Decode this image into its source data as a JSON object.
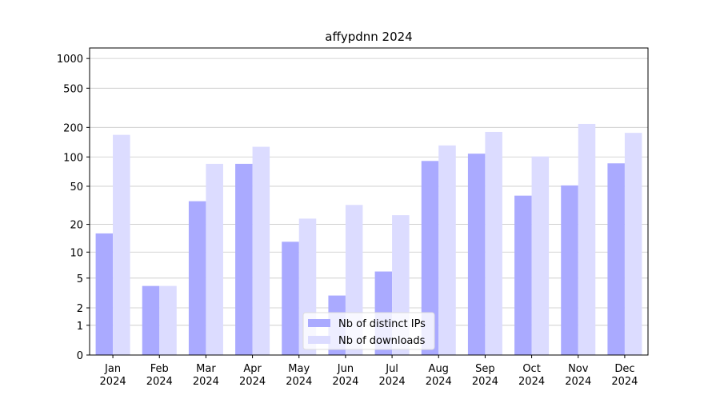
{
  "chart_data": {
    "type": "bar",
    "title": "affypdnn 2024",
    "categories": [
      "Jan 2024",
      "Feb 2024",
      "Mar 2024",
      "Apr 2024",
      "May 2024",
      "Jun 2024",
      "Jul 2024",
      "Aug 2024",
      "Sep 2024",
      "Oct 2024",
      "Nov 2024",
      "Dec 2024"
    ],
    "series": [
      {
        "name": "Nb of distinct IPs",
        "color": "#aaaaff",
        "values": [
          16,
          4,
          35,
          85,
          13,
          3,
          6,
          91,
          108,
          40,
          51,
          86
        ]
      },
      {
        "name": "Nb of downloads",
        "color": "#dcdcff",
        "values": [
          168,
          4,
          85,
          127,
          23,
          32,
          25,
          131,
          180,
          101,
          217,
          176
        ]
      }
    ],
    "yscale": "log1p",
    "ylim": [
      0,
      1278
    ],
    "yticks": [
      0,
      1,
      2,
      5,
      10,
      20,
      50,
      100,
      200,
      500,
      1000
    ],
    "grid": true,
    "legend": "lower center"
  }
}
